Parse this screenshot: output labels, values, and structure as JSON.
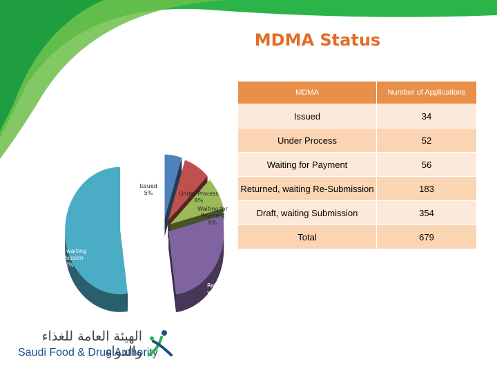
{
  "title": "MDMA Status",
  "table": {
    "headers": [
      "MDMA",
      "Number of Applications"
    ],
    "rows": [
      {
        "label": "Issued",
        "value": "34"
      },
      {
        "label": "Under Process",
        "value": "52"
      },
      {
        "label": "Waiting for Payment",
        "value": "56"
      },
      {
        "label": "Returned, waiting Re-Submission",
        "value": "183"
      },
      {
        "label": "Draft, waiting Submission",
        "value": "354"
      }
    ],
    "total": {
      "label": "Total",
      "value": "679"
    }
  },
  "logo": {
    "arabic": "الهيئة العامة للغذاء والدواء",
    "english": "Saudi Food & Drug Authority"
  },
  "colors": {
    "accent": "#e36c26",
    "green": "#1db04b",
    "header": "#e8904a"
  },
  "chart_data": {
    "type": "pie",
    "title": "",
    "slices": [
      {
        "label": "Issued",
        "percent_label": "5%",
        "value": 34,
        "color": "#4f81bd"
      },
      {
        "label": "Under Process",
        "percent_label": "8%",
        "value": 52,
        "color": "#c0504d"
      },
      {
        "label": "Waiting for Payment",
        "percent_label": "8%",
        "value": 56,
        "color": "#9bbb59"
      },
      {
        "label": "Returned, waiting Re-Submission",
        "percent_label": "27%",
        "value": 183,
        "color": "#8064a2"
      },
      {
        "label": "Draft, waiting Submission",
        "percent_label": "52%",
        "value": 354,
        "color": "#4bacc6"
      }
    ],
    "slice_text": [
      "Issued\n5%",
      "Under Process\n8%",
      "Waiting for\nPayment\n8%",
      "Retur\nwaitin\nSu",
      "Draft, waiting\nSubmission\n52%"
    ]
  }
}
